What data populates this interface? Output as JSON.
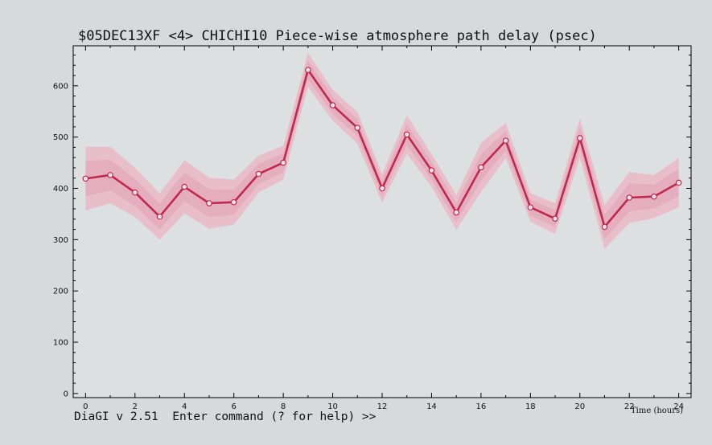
{
  "colors": {
    "background": "#d9dcdc",
    "plot_background": "#dde0e0",
    "line": "#c0284e",
    "band_outer": "#eab7c6",
    "band_inner": "#e3a3b6",
    "marker_fill": "#f6e4ea",
    "frame": "#000000"
  },
  "status_line": "DiaGI v 2.51  Enter command (? for help) >>",
  "chart_data": {
    "type": "line",
    "title": "$05DEC13XF <4>  CHICHI10  Piece-wise atmosphere path delay (psec)",
    "xlabel": "Time (hours)",
    "ylabel": "",
    "xlim": [
      -0.5,
      24.5
    ],
    "ylim": [
      -8,
      678
    ],
    "x_ticks": [
      0,
      2,
      4,
      6,
      8,
      10,
      12,
      14,
      16,
      18,
      20,
      22,
      24
    ],
    "y_ticks": [
      0,
      100,
      200,
      300,
      400,
      500,
      600
    ],
    "grid": false,
    "legend": "none",
    "series": [
      {
        "x": [
          0,
          1,
          2,
          3,
          4,
          5,
          6,
          7,
          8,
          9,
          10,
          11,
          12,
          13,
          14,
          15,
          16,
          17,
          18,
          19,
          20,
          21,
          22,
          23,
          24
        ],
        "values": [
          419,
          426,
          392,
          345,
          403,
          371,
          373,
          428,
          450,
          631,
          562,
          518,
          400,
          505,
          435,
          353,
          441,
          493,
          363,
          341,
          498,
          325,
          382,
          384,
          411
        ],
        "error": [
          62,
          55,
          48,
          45,
          52,
          50,
          44,
          36,
          33,
          33,
          30,
          31,
          28,
          37,
          32,
          34,
          48,
          34,
          28,
          30,
          38,
          43,
          50,
          42,
          48
        ]
      }
    ]
  }
}
